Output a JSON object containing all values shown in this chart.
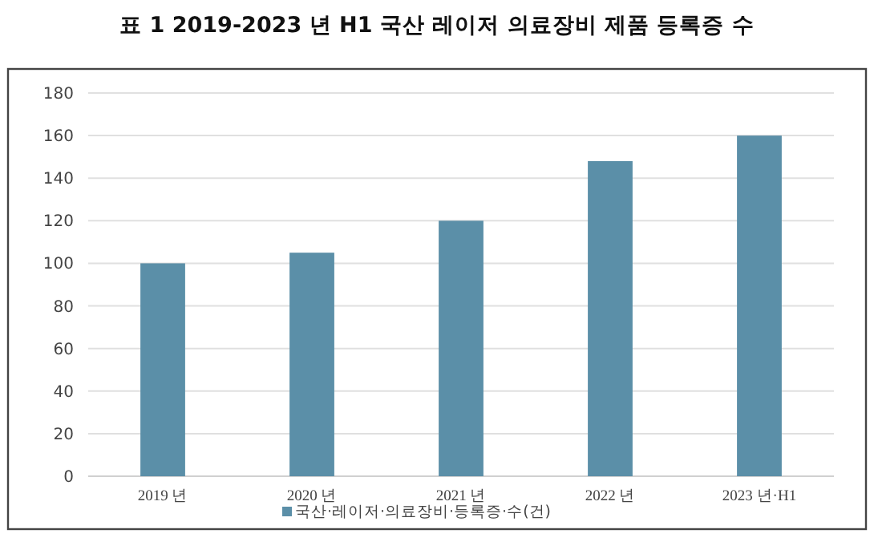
{
  "chart_data": {
    "type": "bar",
    "title": "표 1   2019-2023 년 H1 국산 레이저 의료장비 제품 등록증 수",
    "categories": [
      "2019 년",
      "2020 년",
      "2021 년",
      "2022 년",
      "2023 년·H1"
    ],
    "series": [
      {
        "name": "국산·레이저·의료장비·등록증·수(건)",
        "color": "#5b8fa8",
        "values": [
          100,
          105,
          120,
          148,
          160
        ]
      }
    ],
    "ylim": [
      0,
      180
    ],
    "yticks": [
      0,
      20,
      40,
      60,
      80,
      100,
      120,
      140,
      160,
      180
    ],
    "grid": "y",
    "legend": "bottom"
  }
}
